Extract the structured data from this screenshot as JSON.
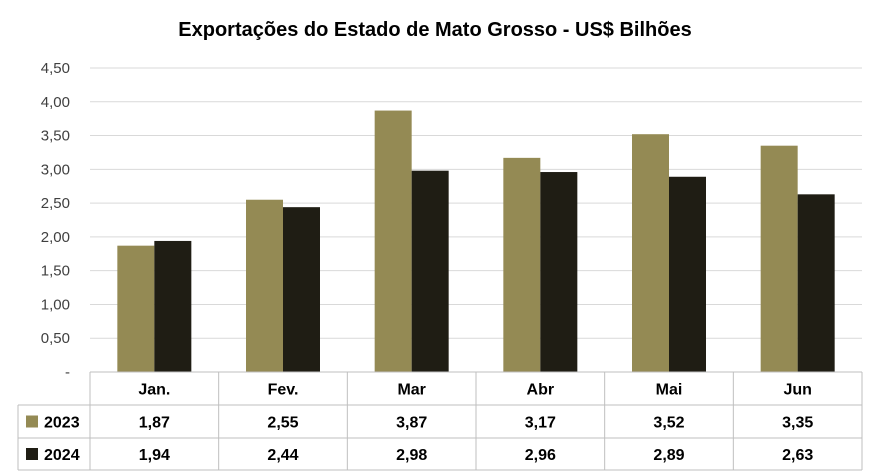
{
  "chart_data": {
    "type": "bar",
    "title": "Exportações do Estado de Mato Grosso - US$ Bilhões",
    "categories": [
      "Jan.",
      "Fev.",
      "Mar",
      "Abr",
      "Mai",
      "Jun"
    ],
    "series": [
      {
        "name": "2023",
        "color": "#948A54",
        "values": [
          1.87,
          2.55,
          3.87,
          3.17,
          3.52,
          3.35
        ],
        "labels": [
          "1,87",
          "2,55",
          "3,87",
          "3,17",
          "3,52",
          "3,35"
        ]
      },
      {
        "name": "2024",
        "color": "#1F1D14",
        "values": [
          1.94,
          2.44,
          2.98,
          2.96,
          2.89,
          2.63
        ],
        "labels": [
          "1,94",
          "2,44",
          "2,98",
          "2,96",
          "2,89",
          "2,63"
        ]
      }
    ],
    "ylim": [
      0,
      4.5
    ],
    "yticks": [
      "-",
      "0,50",
      "1,00",
      "1,50",
      "2,00",
      "2,50",
      "3,00",
      "3,50",
      "4,00",
      "4,50"
    ],
    "grid": true,
    "legend": "data-table"
  }
}
